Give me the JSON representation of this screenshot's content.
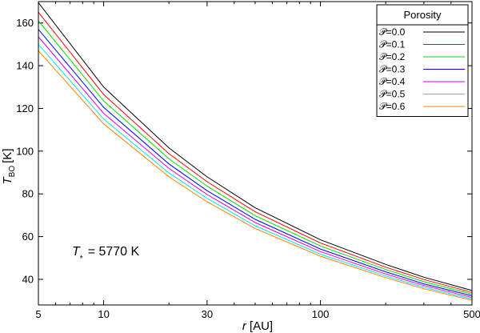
{
  "chart_data": {
    "type": "line",
    "xscale": "log",
    "xlim": [
      5,
      500
    ],
    "ylim": [
      28,
      170
    ],
    "xticks_major": [
      5,
      10,
      30,
      100,
      500
    ],
    "xticks_minor": [
      6,
      7,
      8,
      9,
      20,
      40,
      50,
      60,
      70,
      80,
      90,
      200,
      300,
      400
    ],
    "yticks": [
      40,
      60,
      80,
      100,
      120,
      140,
      160
    ],
    "xlabel": {
      "symbol": "r",
      "unit": "[AU]"
    },
    "ylabel": {
      "symbol": "T",
      "subscript": "BO",
      "unit": "[K]"
    },
    "grid": false,
    "legend": {
      "title": "Porosity",
      "placement": "top-right"
    },
    "annotation": {
      "symbol": "T",
      "subscript": "*",
      "text": "= 5770 K"
    },
    "x": [
      5,
      10,
      20,
      30,
      50,
      100,
      200,
      300,
      500
    ],
    "series": [
      {
        "name": "𝒫=0.0",
        "color": "#000000",
        "values": [
          169.5,
          130,
          101.5,
          88,
          73.5,
          58.5,
          47,
          41,
          34.8
        ]
      },
      {
        "name": "𝒫=0.1",
        "color": "#ff0000",
        "values": [
          165,
          126.5,
          98.8,
          85.7,
          71.6,
          57,
          45.7,
          39.9,
          33.9
        ]
      },
      {
        "name": "𝒫=0.2",
        "color": "#00dd00",
        "values": [
          161,
          123.5,
          96.4,
          83.6,
          69.8,
          55.6,
          44.6,
          38.9,
          33.1
        ]
      },
      {
        "name": "𝒫=0.3",
        "color": "#0000ff",
        "values": [
          157,
          120.5,
          94,
          81.5,
          68.1,
          54.2,
          43.5,
          37.9,
          32.3
        ]
      },
      {
        "name": "𝒫=0.4",
        "color": "#dd00dd",
        "values": [
          153.5,
          117.7,
          91.9,
          79.7,
          66.6,
          53,
          42.5,
          37.1,
          31.5
        ]
      },
      {
        "name": "𝒫=0.5",
        "color": "#00e5e5",
        "values": [
          150,
          115,
          89.8,
          77.9,
          65.1,
          51.8,
          41.6,
          36.3,
          30.8
        ]
      },
      {
        "name": "𝒫=0.6",
        "color": "#ff8000",
        "values": [
          147,
          112.8,
          88,
          76.3,
          63.8,
          50.8,
          40.8,
          35.6,
          30.2
        ]
      }
    ]
  }
}
